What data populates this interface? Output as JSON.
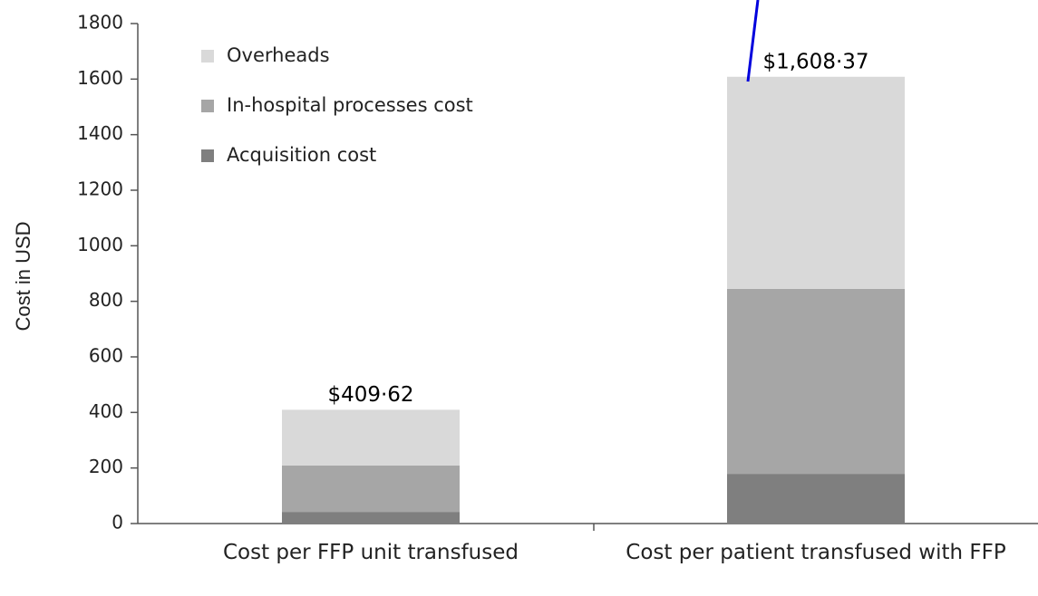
{
  "chart_data": {
    "type": "stacked_bar",
    "ylabel": "Cost in USD",
    "categories": [
      "Cost per FFP unit transfused",
      "Cost per patient transfused with FFP"
    ],
    "series": [
      {
        "name": "Acquisition cost",
        "color": "#7f7f7f",
        "values": [
          42,
          179
        ]
      },
      {
        "name": "In-hospital processes cost",
        "color": "#a6a6a6",
        "values": [
          167,
          666
        ]
      },
      {
        "name": "Overheads",
        "color": "#d9d9d9",
        "values": [
          200.62,
          763.37
        ]
      }
    ],
    "totals": [
      409.62,
      1608.37
    ],
    "total_labels": [
      "$409·62",
      "$1,608·37"
    ],
    "ylim": [
      0,
      1800
    ],
    "yticks": [
      0,
      200,
      400,
      600,
      800,
      1000,
      1200,
      1400,
      1600,
      1800
    ],
    "legend": "upper-left"
  }
}
